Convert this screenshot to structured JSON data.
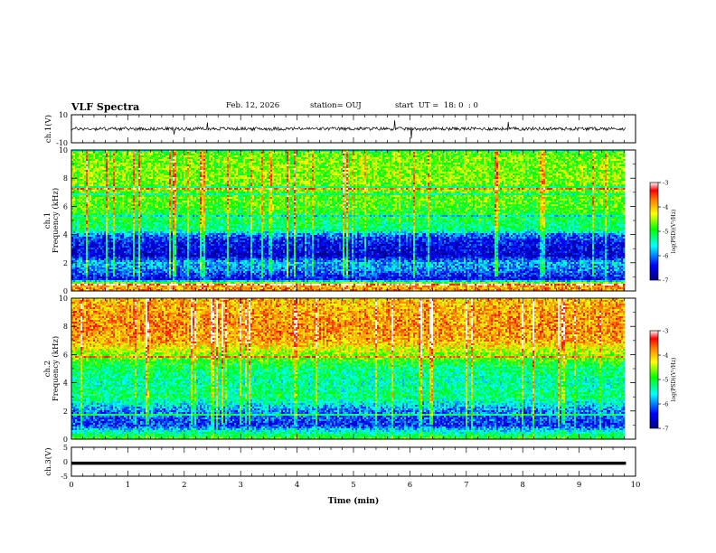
{
  "header": {
    "title": "VLF Spectra",
    "date": "Feb. 12, 2026",
    "station": "station= OUJ",
    "start_time": "start  UT =  18: 0  : 0"
  },
  "chart_data": [
    {
      "type": "line",
      "panel": "ch1-waveform",
      "ylabel": "ch.1(V)",
      "ylim": [
        -10,
        10
      ],
      "yticks": [
        10,
        -10
      ],
      "xlim": [
        0,
        10
      ],
      "series": [
        {
          "values_note": "",
          "baseline": 0,
          "amplitude": 0.6,
          "color": "#000000"
        }
      ]
    },
    {
      "type": "heatmap",
      "panel": "ch1-spectrogram",
      "ylabel": "ch.1\nFrequency (kHz)",
      "ylabel_lines": [
        "ch.1",
        "Frequency (kHz)"
      ],
      "ylim": [
        0,
        10
      ],
      "yticks": [
        0,
        2,
        4,
        6,
        8,
        10
      ],
      "xlim": [
        0,
        10
      ],
      "data_end_min": 9.83,
      "band_profile_khz": [
        {
          "f": 0.0,
          "level": -3.8
        },
        {
          "f": 0.5,
          "level": -4.0
        },
        {
          "f": 0.8,
          "level": -6.5
        },
        {
          "f": 1.5,
          "level": -6.0
        },
        {
          "f": 2.0,
          "level": -5.8
        },
        {
          "f": 2.5,
          "level": -6.6
        },
        {
          "f": 3.5,
          "level": -6.4
        },
        {
          "f": 4.0,
          "level": -6.0
        },
        {
          "f": 4.3,
          "level": -5.3
        },
        {
          "f": 6.0,
          "level": -4.8
        },
        {
          "f": 8.0,
          "level": -4.6
        },
        {
          "f": 10.0,
          "level": -4.7
        }
      ]
    },
    {
      "type": "heatmap",
      "panel": "ch2-spectrogram",
      "ylabel_lines": [
        "ch.2",
        "Frequency (kHz)"
      ],
      "ylim": [
        0,
        10
      ],
      "yticks": [
        0,
        2,
        4,
        6,
        8,
        10
      ],
      "xlim": [
        0,
        10
      ],
      "data_end_min": 9.83,
      "band_profile_khz": [
        {
          "f": 0.0,
          "level": -4.8
        },
        {
          "f": 0.6,
          "level": -5.6
        },
        {
          "f": 1.0,
          "level": -6.3
        },
        {
          "f": 2.0,
          "level": -6.0
        },
        {
          "f": 3.0,
          "level": -5.2
        },
        {
          "f": 4.0,
          "level": -5.4
        },
        {
          "f": 5.0,
          "level": -5.2
        },
        {
          "f": 6.0,
          "level": -4.6
        },
        {
          "f": 7.0,
          "level": -3.9
        },
        {
          "f": 8.0,
          "level": -3.8
        },
        {
          "f": 10.0,
          "level": -4.0
        }
      ]
    },
    {
      "type": "line",
      "panel": "ch3-waveform",
      "ylabel": "ch.3(V)",
      "ylim": [
        -5,
        5
      ],
      "yticks": [
        5,
        0,
        -5
      ],
      "xlim": [
        0,
        10
      ],
      "xlabel": "Time  (min)",
      "xticks": [
        0,
        1,
        2,
        3,
        4,
        5,
        6,
        7,
        8,
        9,
        10
      ],
      "series": [
        {
          "baseline": -0.5,
          "color": "#000000"
        }
      ]
    }
  ],
  "colorbars": [
    {
      "label": "log(PSD)(V²/Hz)",
      "range": [
        -7,
        -3
      ],
      "ticks": [
        -3,
        -4,
        -5,
        -6,
        -7
      ]
    },
    {
      "label": "log(PSD)(V²/Hz)",
      "range": [
        -7,
        -3
      ],
      "ticks": [
        -3,
        -4,
        -5,
        -6,
        -7
      ]
    }
  ],
  "colors": {
    "scale": [
      "#00007f",
      "#0000ff",
      "#00ffff",
      "#00ff00",
      "#ffff00",
      "#ff7f00",
      "#ff0000",
      "#ffffff"
    ]
  }
}
